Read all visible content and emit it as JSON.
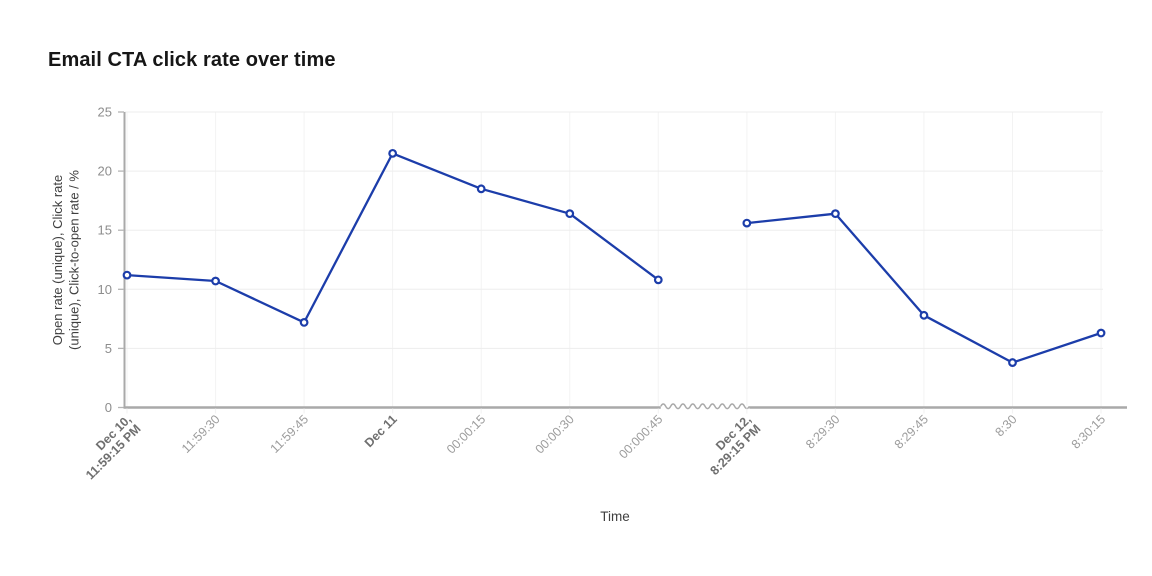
{
  "header": {
    "title": "Email CTA click rate over time"
  },
  "chart_data": {
    "type": "line",
    "title": "Email CTA click rate over time",
    "xlabel": "Time",
    "ylabel": "Open rate (unique), Click rate (unique), Click-to-open rate / %",
    "ylabel_lines": [
      "Open rate (unique), Click rate",
      "(unique), Click-to-open rate / %"
    ],
    "ylim": [
      0,
      25
    ],
    "yticks": [
      0,
      5,
      10,
      15,
      20,
      25
    ],
    "grid": true,
    "legend": "none",
    "marker": "open-circle",
    "x_tick_labels": [
      {
        "lines": [
          "Dec 10,",
          "11:59:15 PM"
        ],
        "bold": true
      },
      {
        "lines": [
          "11:59:30"
        ],
        "bold": false
      },
      {
        "lines": [
          "11:59:45"
        ],
        "bold": false
      },
      {
        "lines": [
          "Dec 11"
        ],
        "bold": true
      },
      {
        "lines": [
          "00:00:15"
        ],
        "bold": false
      },
      {
        "lines": [
          "00:00:30"
        ],
        "bold": false
      },
      {
        "lines": [
          "00:000:45"
        ],
        "bold": false
      },
      {
        "lines": [
          "Dec 12,",
          "8:29:15 PM"
        ],
        "bold": true
      },
      {
        "lines": [
          "8:29:30"
        ],
        "bold": false
      },
      {
        "lines": [
          "8:29:45"
        ],
        "bold": false
      },
      {
        "lines": [
          "8:30"
        ],
        "bold": false
      },
      {
        "lines": [
          "8:30:15"
        ],
        "bold": false
      }
    ],
    "series": [
      {
        "name": "Open rate (unique), Click rate (unique), Click-to-open rate",
        "values": [
          11.2,
          10.7,
          7.2,
          21.5,
          18.5,
          16.4,
          10.8,
          15.6,
          16.4,
          7.8,
          3.8,
          6.3
        ],
        "gap_after_index": 6
      }
    ],
    "axis_break": {
      "after_tick_index": 6,
      "style": "squiggle"
    }
  },
  "colors": {
    "line": "#1c3daa",
    "marker_fill": "#ffffff",
    "axis": "#a9a9a9",
    "grid_h": "#ededed",
    "grid_v": "#f3f3f3",
    "y_tick_label": "#8d8d8d",
    "x_tick_label": "#9c9c9c",
    "x_tick_label_bold": "#6f6f6f",
    "axis_title": "#3f3f3f",
    "title": "#161616",
    "tick_mark": "#b5b5b5"
  }
}
